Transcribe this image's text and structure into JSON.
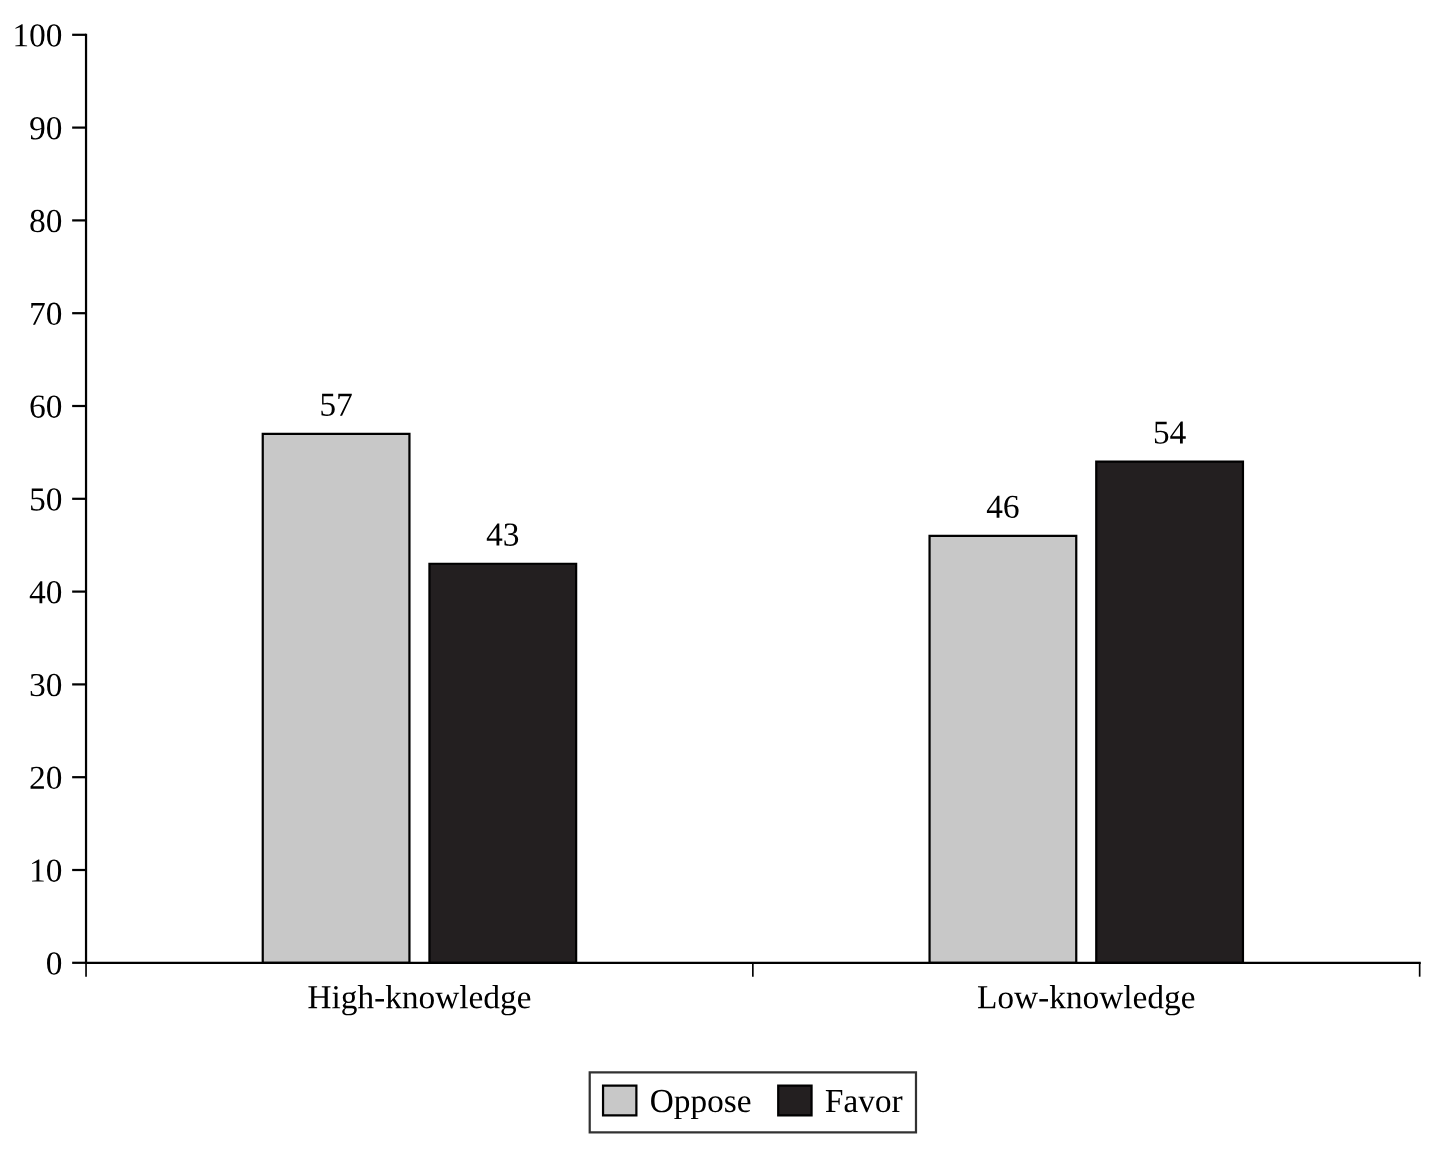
{
  "chart_data": {
    "type": "bar",
    "categories": [
      "High-knowledge",
      "Low-knowledge"
    ],
    "series": [
      {
        "name": "Oppose",
        "color": "#c8c8c8",
        "values": [
          57,
          46
        ]
      },
      {
        "name": "Favor",
        "color": "#231f20",
        "values": [
          43,
          54
        ]
      }
    ],
    "ylim": [
      0,
      100
    ],
    "yticks": [
      0,
      10,
      20,
      30,
      40,
      50,
      60,
      70,
      80,
      90,
      100
    ],
    "grid": false,
    "legend": "bottom",
    "data_labels": true
  }
}
